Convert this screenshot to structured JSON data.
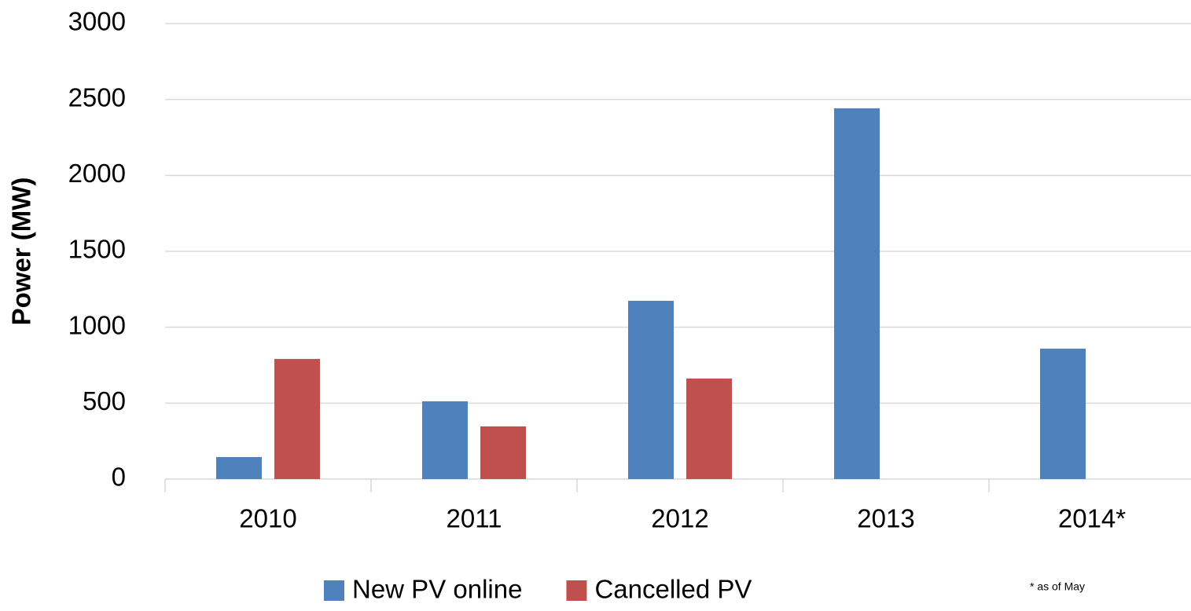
{
  "chart_data": {
    "type": "bar",
    "y_label": "Power (MW)",
    "categories": [
      "2010",
      "2011",
      "2012",
      "2013",
      "2014*"
    ],
    "series": [
      {
        "name": "New PV online",
        "color": "#4f81bd",
        "values": [
          145,
          512,
          1174,
          2442,
          859
        ]
      },
      {
        "name": "Cancelled PV",
        "color": "#c0504d",
        "values": [
          791,
          347,
          662,
          0,
          0
        ]
      }
    ],
    "ylim": [
      0,
      3000
    ],
    "yticks": [
      0,
      500,
      1000,
      1500,
      2000,
      2500,
      3000
    ],
    "grid": true,
    "legend": "bottom",
    "annotation": "* as of  May"
  }
}
